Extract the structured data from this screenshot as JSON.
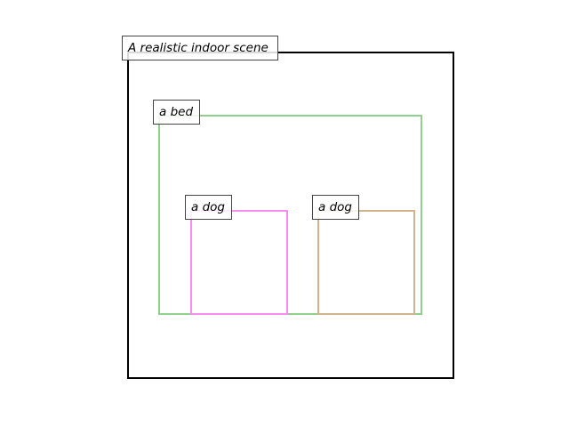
{
  "scene": {
    "label": "A realistic indoor scene",
    "border_color": "#000000"
  },
  "objects": [
    {
      "id": "bed",
      "label": "a bed",
      "color": "#8fd18b"
    },
    {
      "id": "dog-left",
      "label": "a dog",
      "color": "#f78cf2"
    },
    {
      "id": "dog-right",
      "label": "a dog",
      "color": "#d2b48c"
    }
  ]
}
